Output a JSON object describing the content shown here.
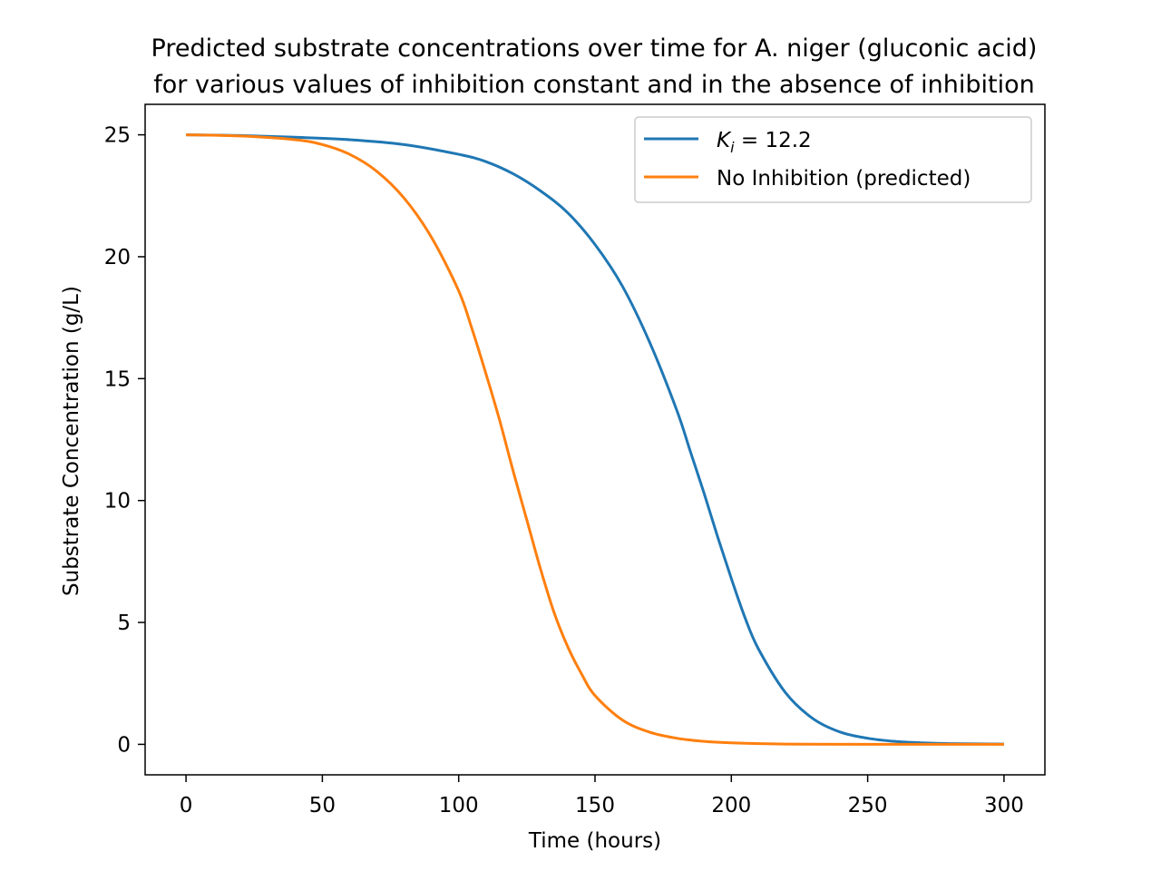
{
  "chart_data": {
    "type": "line",
    "title_lines": [
      "Predicted substrate concentrations over time for A. niger (gluconic acid)",
      "for various values of inhibition constant and in the absence of inhibition"
    ],
    "xlabel": "Time (hours)",
    "ylabel": "Substrate Concentration (g/L)",
    "xlim": [
      -15,
      315
    ],
    "ylim": [
      -1.25,
      26.25
    ],
    "xticks": [
      0,
      50,
      100,
      150,
      200,
      250,
      300
    ],
    "yticks": [
      0,
      5,
      10,
      15,
      20,
      25
    ],
    "grid": false,
    "legend_position": "top-right",
    "series": [
      {
        "name_main": "K",
        "name_sub": "i",
        "name_rest": " = 12.2",
        "color": "#1f77b4",
        "x": [
          0,
          20,
          40,
          60,
          80,
          100,
          110,
          120,
          130,
          140,
          150,
          160,
          170,
          180,
          185,
          190,
          195,
          200,
          205,
          210,
          220,
          230,
          240,
          250,
          260,
          270,
          280,
          300
        ],
        "y": [
          25.0,
          24.97,
          24.9,
          24.8,
          24.6,
          24.2,
          23.9,
          23.4,
          22.7,
          21.8,
          20.5,
          18.8,
          16.5,
          13.7,
          12.0,
          10.3,
          8.5,
          6.8,
          5.2,
          3.9,
          2.1,
          1.05,
          0.5,
          0.25,
          0.12,
          0.06,
          0.03,
          0.01
        ]
      },
      {
        "name": "No Inhibition (predicted)",
        "color": "#ff7f0e",
        "x": [
          0,
          20,
          40,
          50,
          60,
          70,
          80,
          90,
          100,
          105,
          110,
          115,
          120,
          125,
          130,
          135,
          140,
          145,
          150,
          160,
          170,
          180,
          190,
          200,
          220,
          250,
          300
        ],
        "y": [
          25.0,
          24.95,
          24.8,
          24.6,
          24.2,
          23.5,
          22.4,
          20.8,
          18.6,
          17.0,
          15.2,
          13.3,
          11.2,
          9.2,
          7.2,
          5.4,
          4.0,
          2.9,
          2.0,
          1.0,
          0.5,
          0.25,
          0.12,
          0.06,
          0.01,
          0.0,
          0.0
        ]
      }
    ]
  }
}
